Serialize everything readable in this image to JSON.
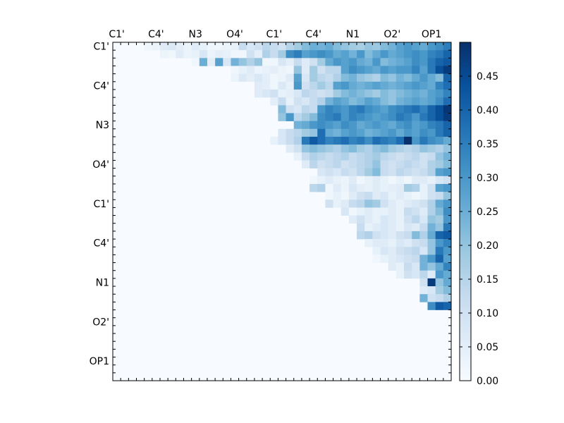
{
  "chart_data": {
    "type": "heatmap",
    "title": "",
    "xlabel": "",
    "ylabel": "",
    "x_tick_labels": [
      "C1'",
      "C4'",
      "N3",
      "O4'",
      "C1'",
      "C4'",
      "N1",
      "O2'",
      "OP1"
    ],
    "y_tick_labels": [
      "C1'",
      "C4'",
      "N3",
      "O4'",
      "C1'",
      "C4'",
      "N1",
      "O2'",
      "OP1"
    ],
    "colorbar": {
      "ticks": [
        "0.00",
        "0.05",
        "0.10",
        "0.15",
        "0.20",
        "0.25",
        "0.30",
        "0.35",
        "0.40",
        "0.45"
      ],
      "range": [
        0.0,
        0.5
      ],
      "colormap": "Blues"
    },
    "matrix_size": 43,
    "band_rows": [
      {
        "row": 0,
        "label": "C1'",
        "values": [
          0.02,
          0.03,
          0.06,
          0.07,
          0.05,
          0.03,
          0.06,
          0.04,
          0.02,
          0.02,
          0.03,
          0.04,
          0.12,
          0.08,
          0.1,
          0.14,
          0.12,
          0.1,
          0.15,
          0.18,
          0.22,
          0.25,
          0.24,
          0.26,
          0.22,
          0.2,
          0.18,
          0.17,
          0.2,
          0.19,
          0.22,
          0.24,
          0.28,
          0.3,
          0.28,
          0.26,
          0.3,
          0.32,
          0.35
        ]
      },
      {
        "row": 1,
        "label": "",
        "values": [
          0.03,
          0.02,
          0.06,
          0.03,
          0.04,
          0.08,
          0.03,
          0.05,
          0.04,
          0.02,
          0.02,
          0.1,
          0.05,
          0.16,
          0.12,
          0.18,
          0.32,
          0.35,
          0.28,
          0.3,
          0.32,
          0.3,
          0.26,
          0.28,
          0.24,
          0.3,
          0.22,
          0.26,
          0.3,
          0.26,
          0.28,
          0.3,
          0.32,
          0.3,
          0.34,
          0.36,
          0.4
        ]
      },
      {
        "row": 2,
        "label": "",
        "values": [
          0.02,
          0.25,
          0.05,
          0.28,
          0.08,
          0.24,
          0.2,
          0.16,
          0.2,
          0.02,
          0.02,
          0.08,
          0.05,
          0.12,
          0.06,
          0.1,
          0.18,
          0.26,
          0.3,
          0.28,
          0.3,
          0.26,
          0.24,
          0.3,
          0.22,
          0.24,
          0.26,
          0.28,
          0.32,
          0.3,
          0.36,
          0.4,
          0.42
        ]
      },
      {
        "row": 3,
        "label": "",
        "values": [
          0.02,
          0.04,
          0.06,
          0.03,
          0.04,
          0.05,
          0.03,
          0.02,
          0.2,
          0.06,
          0.18,
          0.1,
          0.14,
          0.14,
          0.28,
          0.32,
          0.3,
          0.28,
          0.26,
          0.3,
          0.28,
          0.3,
          0.3,
          0.34,
          0.28,
          0.36,
          0.44,
          0.48
        ]
      },
      {
        "row": 4,
        "label": "C4'",
        "values": [
          0.03,
          0.07,
          0.05,
          0.08,
          0.05,
          0.02,
          0.03,
          0.06,
          0.28,
          0.08,
          0.18,
          0.14,
          0.12,
          0.16,
          0.22,
          0.24,
          0.2,
          0.18,
          0.16,
          0.22,
          0.2,
          0.24,
          0.22,
          0.26,
          0.3,
          0.26,
          0.22,
          0.4
        ]
      },
      {
        "row": 5,
        "label": "",
        "values": [
          0.06,
          0.05,
          0.02,
          0.07,
          0.04,
          0.3,
          0.1,
          0.14,
          0.18,
          0.14,
          0.28,
          0.3,
          0.26,
          0.24,
          0.26,
          0.28,
          0.26,
          0.24,
          0.26,
          0.28,
          0.3,
          0.28,
          0.26,
          0.34,
          0.38
        ]
      },
      {
        "row": 6,
        "label": "",
        "values": [
          0.06,
          0.08,
          0.1,
          0.04,
          0.05,
          0.08,
          0.14,
          0.12,
          0.1,
          0.12,
          0.18,
          0.22,
          0.24,
          0.22,
          0.2,
          0.18,
          0.22,
          0.2,
          0.22,
          0.24,
          0.26,
          0.24,
          0.28,
          0.3,
          0.34
        ]
      },
      {
        "row": 7,
        "label": "",
        "values": [
          0.05,
          0.12,
          0.04,
          0.1,
          0.08,
          0.12,
          0.16,
          0.24,
          0.28,
          0.26,
          0.22,
          0.24,
          0.28,
          0.26,
          0.22,
          0.2,
          0.24,
          0.26,
          0.28,
          0.26,
          0.28,
          0.32,
          0.38
        ]
      },
      {
        "row": 8,
        "label": "N3",
        "values": [
          0.22,
          0.1,
          0.08,
          0.14,
          0.12,
          0.3,
          0.34,
          0.32,
          0.3,
          0.34,
          0.36,
          0.32,
          0.3,
          0.28,
          0.32,
          0.34,
          0.36,
          0.38,
          0.34,
          0.4,
          0.44,
          0.49
        ]
      },
      {
        "row": 9,
        "label": "",
        "values": [
          0.2,
          0.3,
          0.14,
          0.18,
          0.22,
          0.32,
          0.34,
          0.36,
          0.3,
          0.34,
          0.32,
          0.3,
          0.28,
          0.3,
          0.32,
          0.36,
          0.34,
          0.3,
          0.36,
          0.4,
          0.44,
          0.48
        ]
      },
      {
        "row": 10,
        "label": "",
        "values": [
          0.24,
          0.26,
          0.3,
          0.32,
          0.3,
          0.28,
          0.32,
          0.3,
          0.26,
          0.28,
          0.3,
          0.28,
          0.26,
          0.3,
          0.32,
          0.28,
          0.3,
          0.34,
          0.36,
          0.4
        ]
      },
      {
        "row": 11,
        "label": "",
        "values": [
          0.08,
          0.12,
          0.14,
          0.18,
          0.2,
          0.38,
          0.26,
          0.24,
          0.28,
          0.3,
          0.28,
          0.24,
          0.26,
          0.28,
          0.3,
          0.26,
          0.3,
          0.28,
          0.32,
          0.3,
          0.36,
          0.4
        ]
      },
      {
        "row": 12,
        "label": "O4'",
        "values": [
          0.04,
          0.08,
          0.12,
          0.16,
          0.36,
          0.42,
          0.38,
          0.34,
          0.36,
          0.38,
          0.34,
          0.36,
          0.32,
          0.38,
          0.36,
          0.34,
          0.38,
          0.5,
          0.3,
          0.36,
          0.32,
          0.3,
          0.26
        ]
      },
      {
        "row": 13,
        "label": "",
        "values": [
          0.06,
          0.1,
          0.2,
          0.22,
          0.2,
          0.18,
          0.16,
          0.2,
          0.22,
          0.18,
          0.16,
          0.2,
          0.22,
          0.18,
          0.16,
          0.14,
          0.16,
          0.2,
          0.18,
          0.16,
          0.2
        ]
      },
      {
        "row": 14,
        "label": "",
        "values": [
          0.04,
          0.12,
          0.16,
          0.14,
          0.12,
          0.14,
          0.16,
          0.12,
          0.14,
          0.16,
          0.18,
          0.14,
          0.12,
          0.1,
          0.12,
          0.14,
          0.1,
          0.12,
          0.2,
          0.24
        ]
      },
      {
        "row": 15,
        "label": "",
        "values": [
          0.06,
          0.14,
          0.1,
          0.12,
          0.14,
          0.1,
          0.12,
          0.14,
          0.16,
          0.2,
          0.12,
          0.1,
          0.12,
          0.14,
          0.12,
          0.1,
          0.16,
          0.18,
          0.22
        ]
      },
      {
        "row": 16,
        "label": "C1'",
        "values": [
          0.08,
          0.1,
          0.08,
          0.12,
          0.1,
          0.14,
          0.18,
          0.22,
          0.12,
          0.1,
          0.14,
          0.12,
          0.1,
          0.12,
          0.16,
          0.28,
          0.3
        ]
      },
      {
        "row": 17,
        "label": "",
        "values": [
          0.02,
          0.04,
          0.06,
          0.04,
          0.03,
          0.06,
          0.02,
          0.04,
          0.06,
          0.04,
          0.02,
          0.04,
          0.02,
          0.06,
          0.06,
          0.04,
          0.08,
          0.1
        ]
      },
      {
        "row": 18,
        "label": "",
        "values": [
          0.14,
          0.16,
          0.02,
          0.06,
          0.03,
          0.08,
          0.05,
          0.04,
          0.06,
          0.04,
          0.05,
          0.06,
          0.18,
          0.16,
          0.04,
          0.1,
          0.28,
          0.3
        ]
      },
      {
        "row": 19,
        "label": "",
        "values": [
          0.02,
          0.04,
          0.02,
          0.06,
          0.1,
          0.12,
          0.06,
          0.08,
          0.04,
          0.06,
          0.04,
          0.02,
          0.04,
          0.1,
          0.12,
          0.2
        ]
      },
      {
        "row": 20,
        "label": "C4'",
        "values": [
          0.1,
          0.04,
          0.06,
          0.12,
          0.14,
          0.2,
          0.18,
          0.1,
          0.06,
          0.04,
          0.06,
          0.08,
          0.1,
          0.16,
          0.26,
          0.3
        ]
      },
      {
        "row": 21,
        "label": "",
        "values": [
          0.08,
          0.02,
          0.04,
          0.06,
          0.04,
          0.04,
          0.06,
          0.04,
          0.12,
          0.1,
          0.06,
          0.16,
          0.22,
          0.32
        ]
      },
      {
        "row": 22,
        "label": "",
        "values": [
          0.06,
          0.1,
          0.06,
          0.04,
          0.08,
          0.06,
          0.04,
          0.1,
          0.14,
          0.08,
          0.2,
          0.18,
          0.3
        ]
      },
      {
        "row": 23,
        "label": "",
        "values": [
          0.12,
          0.04,
          0.06,
          0.08,
          0.06,
          0.04,
          0.08,
          0.06,
          0.12,
          0.24,
          0.2,
          0.36
        ]
      },
      {
        "row": 24,
        "label": "N1",
        "values": [
          0.14,
          0.16,
          0.1,
          0.08,
          0.06,
          0.1,
          0.12,
          0.22,
          0.16,
          0.26,
          0.4,
          0.42
        ]
      },
      {
        "row": 25,
        "label": "",
        "values": [
          0.04,
          0.06,
          0.06,
          0.04,
          0.08,
          0.06,
          0.1,
          0.12,
          0.2,
          0.3,
          0.34
        ]
      },
      {
        "row": 26,
        "label": "",
        "values": [
          0.04,
          0.08,
          0.06,
          0.1,
          0.12,
          0.14,
          0.08,
          0.2,
          0.36,
          0.3
        ]
      },
      {
        "row": 27,
        "label": "",
        "values": [
          0.02,
          0.04,
          0.06,
          0.08,
          0.1,
          0.12,
          0.24,
          0.3,
          0.4,
          0.28
        ]
      },
      {
        "row": 28,
        "label": "O2'",
        "values": [
          0.06,
          0.04,
          0.12,
          0.08,
          0.24,
          0.2,
          0.26,
          0.34
        ]
      },
      {
        "row": 29,
        "label": "",
        "values": [
          0.04,
          0.1,
          0.08,
          0.14,
          0.06,
          0.3,
          0.26
        ]
      },
      {
        "row": 30,
        "label": "",
        "values": [
          0.1,
          0.48,
          0.2,
          0.26
        ]
      },
      {
        "row": 31,
        "label": "",
        "values": [
          0.06,
          0.08,
          0.18,
          0.22
        ]
      },
      {
        "row": 32,
        "label": "OP1",
        "values": [
          0.24,
          0.1,
          0.12,
          0.16
        ]
      },
      {
        "row": 33,
        "label": "",
        "values": [
          0.32,
          0.42,
          0.4
        ]
      }
    ]
  }
}
